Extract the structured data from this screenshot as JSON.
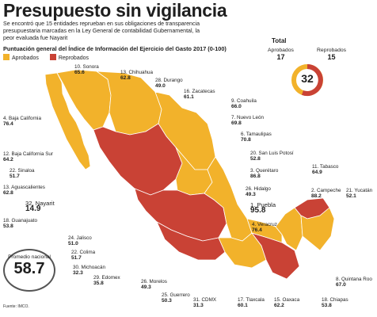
{
  "title": "Presupuesto sin vigilancia",
  "intro": "Se encontró que 15 entidades reprueban en sus obligaciones de transparencia presupuestaria marcadas en la Ley General de contabilidad Gubernamental, la peor evaluada fue Nayarit",
  "subtitle": "Puntuación general del Índice de Información del Ejercicio del Gasto 2017 (0-100)",
  "legend": {
    "approved": "Aprobados",
    "failed": "Reprobados",
    "approved_color": "#f2b22b",
    "failed_color": "#c94235"
  },
  "total": {
    "title": "Total",
    "approved_label": "Aprobados",
    "approved_value": "17",
    "failed_label": "Reprobados",
    "failed_value": "15",
    "center_value": "32"
  },
  "average": {
    "label": "Promedio nacional",
    "value": "58.7"
  },
  "source": "Fuente: IMCO.",
  "states": {
    "s1": {
      "name": "1. Puebla",
      "value": "95.8"
    },
    "s2": {
      "name": "2. Campeche",
      "value": "88.2"
    },
    "s3": {
      "name": "3. Querétaro",
      "value": "86.8"
    },
    "s4": {
      "name": "4. Baja California",
      "value": "76.4"
    },
    "s4v": {
      "name": "4. Veracruz",
      "value": "76.4"
    },
    "s6": {
      "name": "6. Tamaulipas",
      "value": "70.8"
    },
    "s7": {
      "name": "7. Nuevo León",
      "value": "69.8"
    },
    "s8": {
      "name": "8. Quintana Roo",
      "value": "67.0"
    },
    "s9": {
      "name": "9. Coahuila",
      "value": "66.0"
    },
    "s10": {
      "name": "10. Sonora",
      "value": "65.6"
    },
    "s11": {
      "name": "11. Tabasco",
      "value": "64.9"
    },
    "s12": {
      "name": "12. Baja California Sur",
      "value": "64.2"
    },
    "s13": {
      "name": "13. Aguascalientes",
      "value": "62.8"
    },
    "s13c": {
      "name": "13. Chihuahua",
      "value": "62.8"
    },
    "s15": {
      "name": "15. Oaxaca",
      "value": "62.2"
    },
    "s16": {
      "name": "16. Zacatecas",
      "value": "61.1"
    },
    "s17": {
      "name": "17. Tlaxcala",
      "value": "60.1"
    },
    "s18": {
      "name": "18. Guanajuato",
      "value": "53.8"
    },
    "s18c": {
      "name": "18. Chiapas",
      "value": "53.8"
    },
    "s20": {
      "name": "20. San Luis Potosí",
      "value": "52.8"
    },
    "s21": {
      "name": "21. Yucatán",
      "value": "52.1"
    },
    "s22": {
      "name": "22. Sinaloa",
      "value": "51.7"
    },
    "s22c": {
      "name": "22. Colima",
      "value": "51.7"
    },
    "s24": {
      "name": "24. Jalisco",
      "value": "51.0"
    },
    "s25": {
      "name": "25. Guerrero",
      "value": "50.3"
    },
    "s26": {
      "name": "26. Hidalgo",
      "value": "49.3"
    },
    "s26m": {
      "name": "26. Morelos",
      "value": "49.3"
    },
    "s28": {
      "name": "28. Durango",
      "value": "49.0"
    },
    "s29": {
      "name": "29. Edomex",
      "value": "35.8"
    },
    "s30": {
      "name": "30. Michoacán",
      "value": "32.3"
    },
    "s31": {
      "name": "31. CDMX",
      "value": "31.3"
    },
    "s32": {
      "name": "32. Nayarit",
      "value": "14.9"
    }
  }
}
